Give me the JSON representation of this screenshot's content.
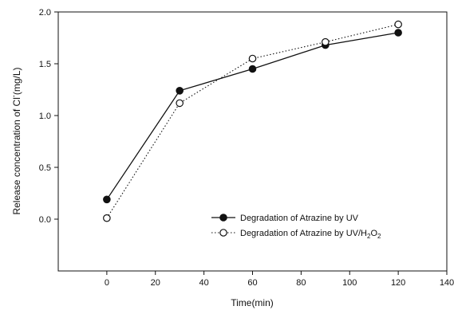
{
  "chart_data": {
    "type": "line",
    "xlabel": "Time(min)",
    "ylabel": {
      "prefix": "Release concentration of Cl",
      "superscript": "-",
      "suffix": "(mg/L)"
    },
    "xlim": [
      -20,
      140
    ],
    "ylim": [
      -0.5,
      2.0
    ],
    "xticks": [
      0,
      20,
      40,
      60,
      80,
      100,
      120,
      140
    ],
    "yticks": [
      0.0,
      0.5,
      1.0,
      1.5,
      2.0
    ],
    "legend_position": "lower-right",
    "series": [
      {
        "name": "Degradation of Atrazine by UV",
        "marker": "filled-circle",
        "line": "solid",
        "x": [
          0,
          30,
          60,
          90,
          120
        ],
        "y": [
          0.19,
          1.24,
          1.45,
          1.68,
          1.8
        ]
      },
      {
        "name": "Degradation of Atrazine by UV/H2O2",
        "marker": "open-circle",
        "line": "dotted",
        "x": [
          0,
          30,
          60,
          90,
          120
        ],
        "y": [
          0.01,
          1.12,
          1.55,
          1.71,
          1.88
        ]
      }
    ],
    "colors": {
      "axis": "#111111",
      "series": "#111111"
    }
  }
}
